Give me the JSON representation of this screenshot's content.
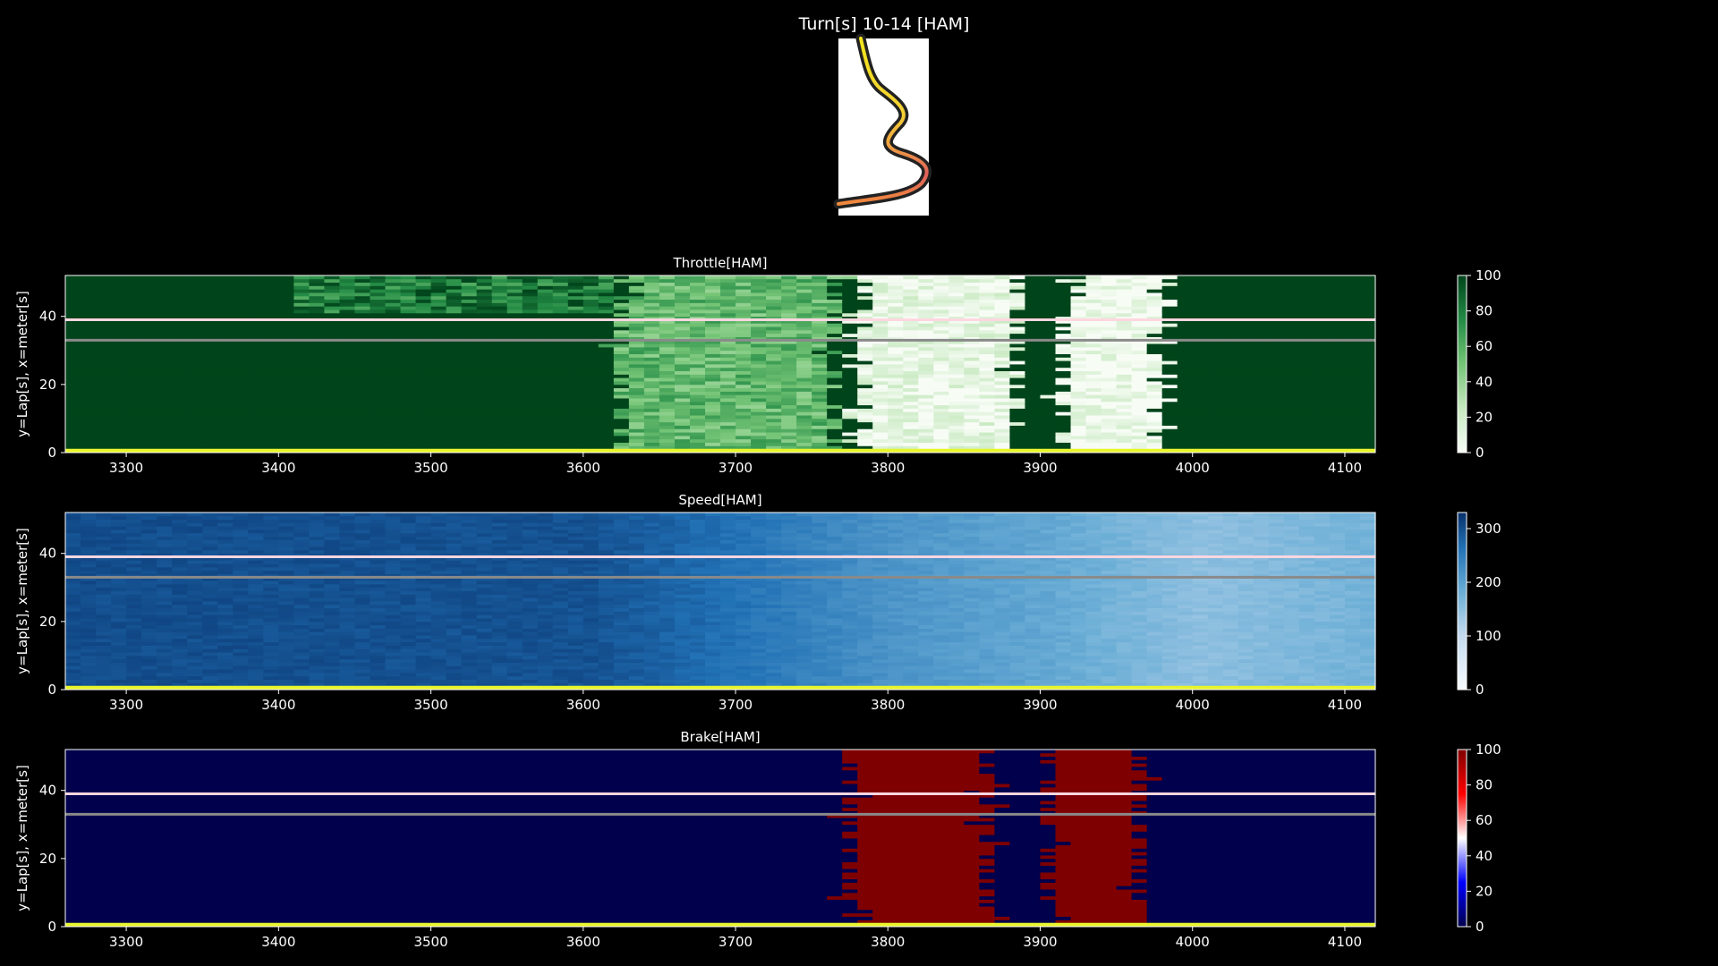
{
  "figure": {
    "title": "Turn[s] 10-14 [HAM]"
  },
  "track_map": {
    "description_icon": "track-corner-map-icon",
    "colors": [
      "#f2e51b",
      "#f4d035",
      "#f1a042",
      "#e0605a",
      "#f08a3c"
    ]
  },
  "chart_data": [
    {
      "type": "heatmap",
      "title": "Throttle[HAM]",
      "ylabel": "y=Lap[s], x=meter[s]",
      "xlim": [
        3260,
        4120
      ],
      "ylim": [
        0,
        52
      ],
      "xticks": [
        3300,
        3400,
        3500,
        3600,
        3700,
        3800,
        3900,
        4000,
        4100
      ],
      "yticks": [
        0,
        20,
        40
      ],
      "colormap": "Greens",
      "colorbar": {
        "min": 0,
        "max": 100,
        "ticks": [
          0,
          20,
          40,
          60,
          80,
          100
        ]
      },
      "reference_lines": [
        {
          "y": 33,
          "color": "#8a8a8a"
        },
        {
          "y": 39,
          "color": "#ffd6e0"
        },
        {
          "y": 0.6,
          "color": "#e8f52a"
        }
      ],
      "zones": [
        {
          "name": "mid-throttle-band",
          "x": [
            3620,
            3760
          ],
          "level": 55
        },
        {
          "name": "lift-zone-1",
          "x": [
            3775,
            3880
          ],
          "level": 8
        },
        {
          "name": "lift-zone-2",
          "x": [
            3910,
            3975
          ],
          "level": 3
        }
      ],
      "background_level": 100
    },
    {
      "type": "heatmap",
      "title": "Speed[HAM]",
      "ylabel": "y=Lap[s], x=meter[s]",
      "xlim": [
        3260,
        4120
      ],
      "ylim": [
        0,
        52
      ],
      "xticks": [
        3300,
        3400,
        3500,
        3600,
        3700,
        3800,
        3900,
        4000,
        4100
      ],
      "yticks": [
        0,
        20,
        40
      ],
      "colormap": "Blues",
      "colorbar": {
        "min": 0,
        "max": 330,
        "ticks": [
          0,
          100,
          200,
          300
        ]
      },
      "reference_lines": [
        {
          "y": 33,
          "color": "#8a8a8a"
        },
        {
          "y": 39,
          "color": "#ffd6e0"
        },
        {
          "y": 0.6,
          "color": "#e8f52a"
        }
      ],
      "speed_profile": [
        {
          "x": 3260,
          "v": 300
        },
        {
          "x": 3600,
          "v": 295
        },
        {
          "x": 3700,
          "v": 260
        },
        {
          "x": 3800,
          "v": 215
        },
        {
          "x": 3900,
          "v": 190
        },
        {
          "x": 4000,
          "v": 150
        },
        {
          "x": 4120,
          "v": 175
        }
      ]
    },
    {
      "type": "heatmap",
      "title": "Brake[HAM]",
      "ylabel": "y=Lap[s], x=meter[s]",
      "xlim": [
        3260,
        4120
      ],
      "ylim": [
        0,
        52
      ],
      "xticks": [
        3300,
        3400,
        3500,
        3600,
        3700,
        3800,
        3900,
        4000,
        4100
      ],
      "yticks": [
        0,
        20,
        40
      ],
      "colormap": "seismic",
      "colorbar": {
        "min": 0,
        "max": 100,
        "ticks": [
          0,
          20,
          40,
          60,
          80,
          100
        ]
      },
      "reference_lines": [
        {
          "y": 33,
          "color": "#8a8a8a"
        },
        {
          "y": 39,
          "color": "#ffd6e0"
        },
        {
          "y": 0.6,
          "color": "#e8f52a"
        }
      ],
      "zones": [
        {
          "name": "braking-zone-1",
          "x": [
            3770,
            3860
          ],
          "level": 100
        },
        {
          "name": "braking-zone-2",
          "x": [
            3900,
            3960
          ],
          "level": 100
        }
      ],
      "background_level": 0
    }
  ]
}
